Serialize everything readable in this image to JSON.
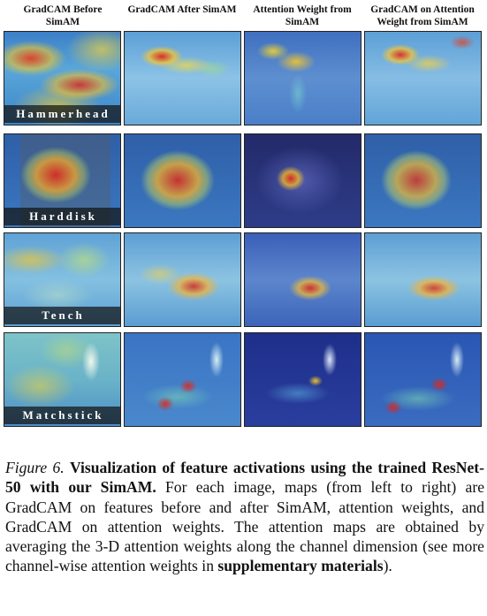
{
  "columns": [
    "GradCAM Before SimAM",
    "GradCAM After SimAM",
    "Attention Weight from SimAM",
    "GradCAM on Attention Weight from SimAM"
  ],
  "rows": [
    "Hammerhead",
    "Harddisk",
    "Tench",
    "Matchstick"
  ],
  "caption": {
    "figure_label": "Figure 6.",
    "title": "Visualization of feature activations using the trained ResNet-50 with our SimAM.",
    "body_1": " For each image, maps (from left to right) are GradCAM on features before and after SimAM, attention weights, and GradCAM on attention weights. The attention maps are obtained by averaging the 3-D attention weights along the channel dimension (see more channel-wise attention weights in ",
    "bold_link": "supplementary materials",
    "body_2": ")."
  }
}
